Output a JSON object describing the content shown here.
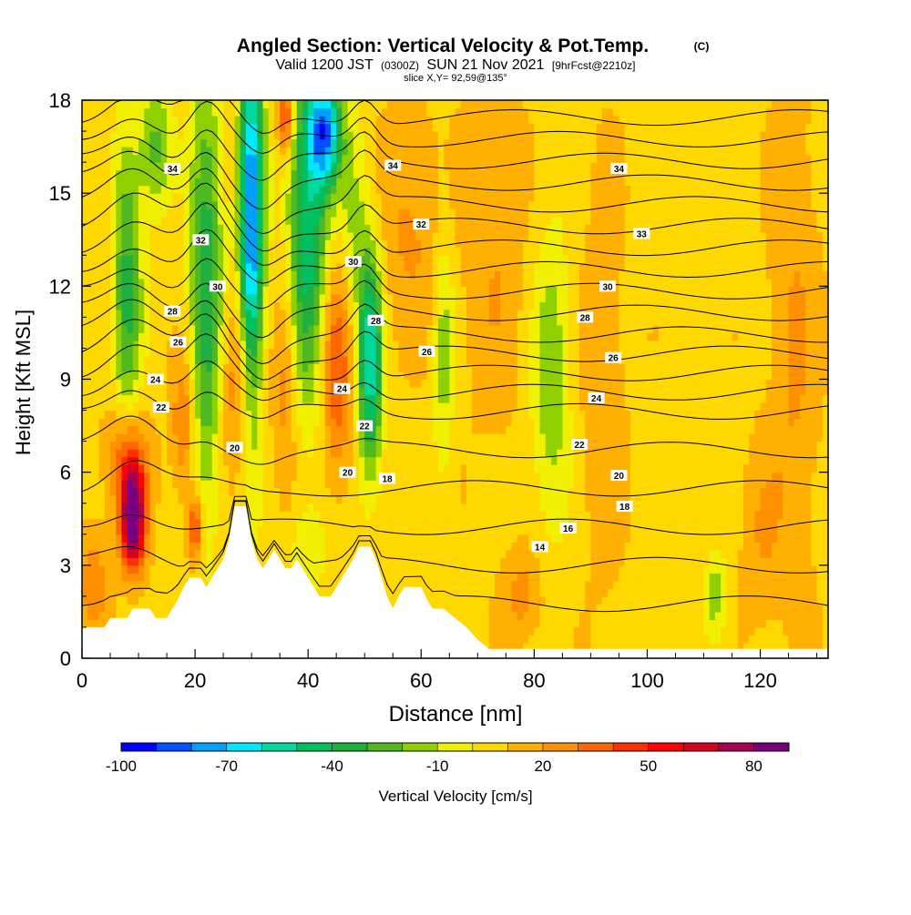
{
  "chart_data": {
    "type": "heatmap",
    "title": "Angled Section: Vertical Velocity & Pot.Temp.",
    "title_unit": "(C)",
    "subtitle_parts": [
      "Valid 1200 JST",
      "(0300Z)",
      "SUN 21 Nov 2021",
      "[9hrFcst@2210z]"
    ],
    "subtitle2": "slice X,Y= 92,59@135°",
    "xlabel": "Distance [nm]",
    "ylabel": "Height [Kft MSL]",
    "xlim": [
      0,
      132
    ],
    "ylim": [
      0,
      18
    ],
    "xticks": [
      "0",
      "20",
      "40",
      "60",
      "80",
      "100",
      "120"
    ],
    "yticks": [
      "0",
      "3",
      "6",
      "9",
      "12",
      "15",
      "18"
    ],
    "grid": false,
    "colorbar": {
      "label": "Vertical Velocity [cm/s]",
      "tick_labels": [
        "-100",
        "-70",
        "-40",
        "-10",
        "20",
        "50",
        "80"
      ],
      "min": -105,
      "step": 10,
      "colors": [
        "#0000ff",
        "#0050ff",
        "#00a0ff",
        "#00e8ff",
        "#00d8a0",
        "#00c060",
        "#20b040",
        "#50b820",
        "#90d000",
        "#f0f000",
        "#ffd800",
        "#ffb000",
        "#ff9000",
        "#ff6800",
        "#ff3000",
        "#ff0000",
        "#d80020",
        "#a80050",
        "#780080"
      ]
    },
    "velocity_features": [
      {
        "x": 9,
        "z": 4.5,
        "sx": 1.5,
        "sz": 1.1,
        "w": 95
      },
      {
        "x": 8,
        "z": 6.5,
        "sx": 2.5,
        "sz": 1.2,
        "w": 35
      },
      {
        "x": 20,
        "z": 4.2,
        "sx": 1.0,
        "sz": 0.8,
        "w": 40
      },
      {
        "x": 18,
        "z": 7.5,
        "sx": 1.5,
        "sz": 1.5,
        "w": 25
      },
      {
        "x": 8,
        "z": 12,
        "sx": 1.8,
        "sz": 3.5,
        "w": -40
      },
      {
        "x": 13,
        "z": 16.5,
        "sx": 2.0,
        "sz": 1.5,
        "w": -30
      },
      {
        "x": 22,
        "z": 12,
        "sx": 2.0,
        "sz": 5.0,
        "w": -45
      },
      {
        "x": 30,
        "z": 14,
        "sx": 1.5,
        "sz": 4.5,
        "w": -90
      },
      {
        "x": 28,
        "z": 9,
        "sx": 2.5,
        "sz": 2.0,
        "w": 25
      },
      {
        "x": 36,
        "z": 17.5,
        "sx": 1.0,
        "sz": 0.8,
        "w": 45
      },
      {
        "x": 36,
        "z": 9,
        "sx": 1.5,
        "sz": 2.5,
        "w": 20
      },
      {
        "x": 40,
        "z": 14,
        "sx": 2.5,
        "sz": 4.0,
        "w": -55
      },
      {
        "x": 43,
        "z": 17,
        "sx": 2.0,
        "sz": 1.2,
        "w": -75
      },
      {
        "x": 45,
        "z": 9.5,
        "sx": 2.0,
        "sz": 2.5,
        "w": 35
      },
      {
        "x": 51,
        "z": 9.5,
        "sx": 1.5,
        "sz": 2.5,
        "w": -65
      },
      {
        "x": 48,
        "z": 14,
        "sx": 2.0,
        "sz": 2.5,
        "w": -20
      },
      {
        "x": 40,
        "z": 3.5,
        "sx": 2.5,
        "sz": 1.0,
        "w": -15
      },
      {
        "x": 64,
        "z": 10,
        "sx": 1.3,
        "sz": 3.0,
        "w": -22
      },
      {
        "x": 83,
        "z": 9,
        "sx": 2.5,
        "sz": 3.5,
        "w": -25
      },
      {
        "x": 112,
        "z": 2,
        "sx": 1.5,
        "sz": 1.0,
        "w": -22
      },
      {
        "x": 58,
        "z": 14,
        "sx": 4.0,
        "sz": 2.5,
        "w": 15
      },
      {
        "x": 73,
        "z": 13,
        "sx": 4.0,
        "sz": 4.0,
        "w": 12
      },
      {
        "x": 92,
        "z": 9,
        "sx": 3.0,
        "sz": 5.0,
        "w": 10
      },
      {
        "x": 78,
        "z": 2,
        "sx": 2.5,
        "sz": 1.0,
        "w": 18
      },
      {
        "x": 2,
        "z": 2.5,
        "sx": 2.0,
        "sz": 1.2,
        "w": 20
      },
      {
        "x": 126,
        "z": 10,
        "sx": 3.0,
        "sz": 6.0,
        "w": 14
      },
      {
        "x": 120,
        "z": 4,
        "sx": 2.5,
        "sz": 2.0,
        "w": 12
      }
    ],
    "terrain": [
      [
        0,
        1.0
      ],
      [
        4,
        1.0
      ],
      [
        5,
        1.3
      ],
      [
        8,
        1.3
      ],
      [
        9,
        1.6
      ],
      [
        12,
        1.6
      ],
      [
        13,
        1.3
      ],
      [
        15,
        1.3
      ],
      [
        16,
        1.6
      ],
      [
        17,
        1.9
      ],
      [
        18,
        2.3
      ],
      [
        19,
        2.6
      ],
      [
        21,
        2.6
      ],
      [
        22,
        2.3
      ],
      [
        23,
        2.6
      ],
      [
        24,
        2.9
      ],
      [
        25,
        3.2
      ],
      [
        26,
        3.8
      ],
      [
        27,
        4.9
      ],
      [
        29,
        4.9
      ],
      [
        30,
        3.8
      ],
      [
        31,
        3.2
      ],
      [
        32,
        2.9
      ],
      [
        33,
        3.2
      ],
      [
        34,
        3.5
      ],
      [
        35,
        3.2
      ],
      [
        36,
        2.9
      ],
      [
        37,
        2.9
      ],
      [
        38,
        3.2
      ],
      [
        40,
        2.6
      ],
      [
        41,
        2.3
      ],
      [
        42,
        2.0
      ],
      [
        44,
        2.0
      ],
      [
        45,
        2.3
      ],
      [
        47,
        2.9
      ],
      [
        48,
        3.2
      ],
      [
        49,
        3.6
      ],
      [
        51,
        3.6
      ],
      [
        52,
        3.2
      ],
      [
        53,
        2.6
      ],
      [
        54,
        2.0
      ],
      [
        55,
        1.6
      ],
      [
        56,
        2.0
      ],
      [
        57,
        2.3
      ],
      [
        60,
        2.3
      ],
      [
        61,
        1.9
      ],
      [
        62,
        1.6
      ],
      [
        64,
        1.6
      ],
      [
        66,
        1.3
      ],
      [
        68,
        1.0
      ],
      [
        70,
        0.6
      ],
      [
        72,
        0.3
      ],
      [
        132,
        0.3
      ]
    ],
    "theta_levels": [
      12,
      14,
      16,
      18,
      20,
      22,
      23,
      24,
      25,
      26,
      27,
      28,
      29,
      30,
      31,
      32,
      33,
      34,
      35,
      36
    ],
    "theta_labels": [
      {
        "x": 16,
        "z": 15.8,
        "text": "34"
      },
      {
        "x": 21,
        "z": 13.5,
        "text": "32"
      },
      {
        "x": 24,
        "z": 12.0,
        "text": "30"
      },
      {
        "x": 16,
        "z": 11.2,
        "text": "28"
      },
      {
        "x": 17,
        "z": 10.2,
        "text": "26"
      },
      {
        "x": 13,
        "z": 9.0,
        "text": "24"
      },
      {
        "x": 14,
        "z": 8.1,
        "text": "22"
      },
      {
        "x": 27,
        "z": 6.8,
        "text": "20"
      },
      {
        "x": 55,
        "z": 15.9,
        "text": "34"
      },
      {
        "x": 60,
        "z": 14.0,
        "text": "32"
      },
      {
        "x": 48,
        "z": 12.8,
        "text": "30"
      },
      {
        "x": 52,
        "z": 10.9,
        "text": "28"
      },
      {
        "x": 61,
        "z": 9.9,
        "text": "26"
      },
      {
        "x": 46,
        "z": 8.7,
        "text": "24"
      },
      {
        "x": 50,
        "z": 7.5,
        "text": "22"
      },
      {
        "x": 47,
        "z": 6.0,
        "text": "20"
      },
      {
        "x": 54,
        "z": 5.8,
        "text": "18"
      },
      {
        "x": 95,
        "z": 15.8,
        "text": "34"
      },
      {
        "x": 99,
        "z": 13.7,
        "text": "33"
      },
      {
        "x": 93,
        "z": 12.0,
        "text": "30"
      },
      {
        "x": 89,
        "z": 11.0,
        "text": "28"
      },
      {
        "x": 94,
        "z": 9.7,
        "text": "26"
      },
      {
        "x": 91,
        "z": 8.4,
        "text": "24"
      },
      {
        "x": 88,
        "z": 6.9,
        "text": "22"
      },
      {
        "x": 95,
        "z": 5.9,
        "text": "20"
      },
      {
        "x": 96,
        "z": 4.9,
        "text": "18"
      },
      {
        "x": 86,
        "z": 4.2,
        "text": "16"
      },
      {
        "x": 81,
        "z": 3.6,
        "text": "14"
      }
    ]
  }
}
